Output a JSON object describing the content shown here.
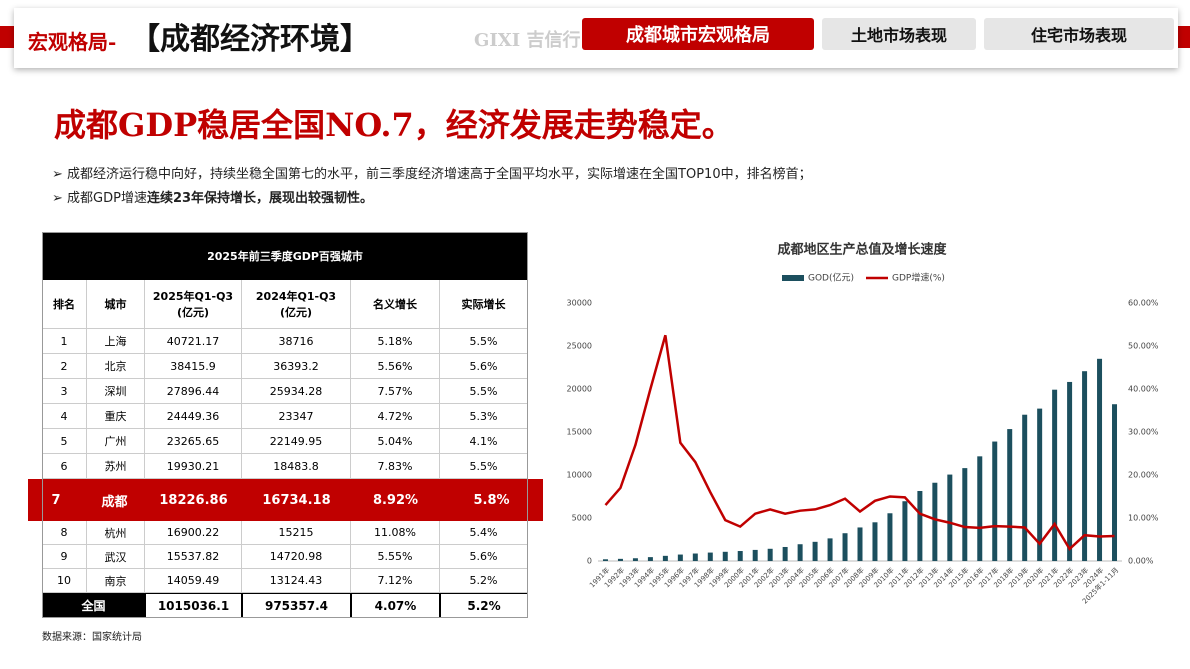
{
  "header": {
    "section": "宏观格局-",
    "topic": "【成都经济环境】",
    "logo": "GIXI 吉信行",
    "tabs": [
      "成都城市宏观格局",
      "土地市场表现",
      "住宅市场表现"
    ]
  },
  "headline": "成都GDP稳居全国NO.7，经济发展走势稳定。",
  "bullets": [
    {
      "parts": [
        "成都经济运行稳中向好，持续坐稳全国第七的水平，前三季度经济增速高于全国平均水平，实际增速在全国TOP10中，排名榜首；"
      ]
    },
    {
      "parts": [
        "成都GDP增速",
        "连续23年保持增长，展现出较强韧性。"
      ]
    }
  ],
  "table": {
    "title": "2025年前三季度GDP百强城市",
    "columns": [
      "排名",
      "城市",
      "2025年Q1-Q3\n(亿元)",
      "2024年Q1-Q3\n(亿元)",
      "名义增长",
      "实际增长"
    ],
    "rows": [
      [
        "1",
        "上海",
        "40721.17",
        "38716",
        "5.18%",
        "5.5%"
      ],
      [
        "2",
        "北京",
        "38415.9",
        "36393.2",
        "5.56%",
        "5.6%"
      ],
      [
        "3",
        "深圳",
        "27896.44",
        "25934.28",
        "7.57%",
        "5.5%"
      ],
      [
        "4",
        "重庆",
        "24449.36",
        "23347",
        "4.72%",
        "5.3%"
      ],
      [
        "5",
        "广州",
        "23265.65",
        "22149.95",
        "5.04%",
        "4.1%"
      ],
      [
        "6",
        "苏州",
        "19930.21",
        "18483.8",
        "7.83%",
        "5.5%"
      ],
      [
        "7",
        "成都",
        "18226.86",
        "16734.18",
        "8.92%",
        "5.8%"
      ],
      [
        "8",
        "杭州",
        "16900.22",
        "15215",
        "11.08%",
        "5.4%"
      ],
      [
        "9",
        "武汉",
        "15537.82",
        "14720.98",
        "5.55%",
        "5.6%"
      ],
      [
        "10",
        "南京",
        "14059.49",
        "13124.43",
        "7.12%",
        "5.2%"
      ]
    ],
    "total": [
      "全国",
      "1015036.1",
      "975357.4",
      "4.07%",
      "5.2%"
    ]
  },
  "source": "数据来源：国家统计局",
  "chart_data": {
    "type": "bar",
    "title": "成都地区生产总值及增长速度",
    "categories": [
      "1991年",
      "1992年",
      "1993年",
      "1994年",
      "1995年",
      "1996年",
      "1997年",
      "1998年",
      "1999年",
      "2000年",
      "2001年",
      "2002年",
      "2003年",
      "2004年",
      "2005年",
      "2006年",
      "2007年",
      "2008年",
      "2009年",
      "2010年",
      "2011年",
      "2012年",
      "2013年",
      "2014年",
      "2015年",
      "2016年",
      "2017年",
      "2018年",
      "2019年",
      "2020年",
      "2021年",
      "2022年",
      "2023年",
      "2024年",
      "2025年1-11月"
    ],
    "series": [
      {
        "name": "GOD(亿元)",
        "color": "#1c4f5e",
        "values": [
          200,
          250,
          320,
          450,
          600,
          750,
          870,
          980,
          1070,
          1160,
          1290,
          1420,
          1630,
          1950,
          2230,
          2630,
          3230,
          3900,
          4500,
          5550,
          6950,
          8140,
          9100,
          10050,
          10800,
          12170,
          13890,
          15340,
          17010,
          17720,
          19920,
          20820,
          22070,
          23510,
          18230
        ]
      },
      {
        "name": "GDP增速(%)",
        "color": "#c00000",
        "type": "line",
        "axis": "y2",
        "values": [
          13,
          17,
          27,
          40,
          52.5,
          27.5,
          23,
          16,
          9.5,
          8,
          11,
          12,
          11,
          11.7,
          12,
          13,
          14.5,
          11.5,
          14,
          15,
          14.8,
          11,
          9.7,
          8.9,
          7.9,
          7.7,
          8.1,
          8,
          7.8,
          4,
          8.6,
          2.8,
          6,
          5.7,
          5.8
        ]
      }
    ],
    "ylim": [
      0,
      30000
    ],
    "yticks": [
      0,
      5000,
      10000,
      15000,
      20000,
      25000,
      30000
    ],
    "y2lim": [
      0,
      60
    ],
    "y2ticks": [
      {
        "value": 0,
        "label": "0.00%"
      },
      {
        "value": 10,
        "label": "10.00%"
      },
      {
        "value": 20,
        "label": "20.00%"
      },
      {
        "value": 30,
        "label": "30.00%"
      },
      {
        "value": 40,
        "label": "40.00%"
      },
      {
        "value": 50,
        "label": "50.00%"
      },
      {
        "value": 60,
        "label": "60.00%"
      }
    ],
    "legend": "top",
    "grid": false
  }
}
